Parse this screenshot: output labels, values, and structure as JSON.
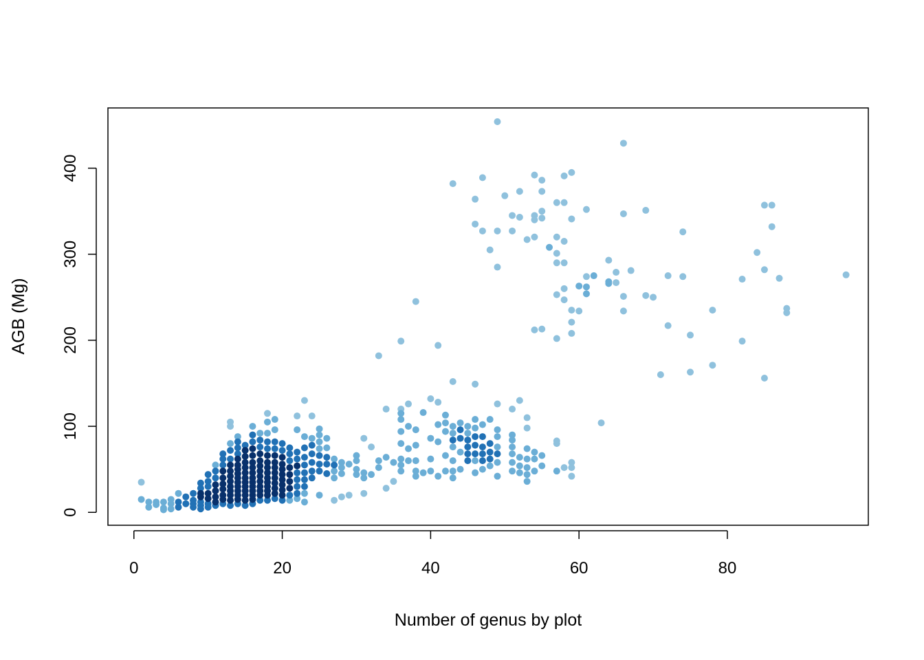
{
  "chart_data": {
    "type": "scatter",
    "xlabel": "Number of genus by plot",
    "ylabel": "AGB (Mg)",
    "xlim": [
      -3.5,
      99
    ],
    "ylim": [
      -15,
      470
    ],
    "x_ticks": [
      0,
      20,
      40,
      60,
      80
    ],
    "y_ticks": [
      0,
      100,
      200,
      300,
      400
    ],
    "grid": false,
    "legend": "none",
    "colors": {
      "dense": "#08306b",
      "mid": "#2171b5",
      "light": "#6baed6",
      "sparse": "#8fc1dd"
    },
    "points": [
      [
        1,
        35
      ],
      [
        1,
        15
      ],
      [
        2,
        6
      ],
      [
        2,
        12
      ],
      [
        3,
        12
      ],
      [
        3,
        9
      ],
      [
        4,
        5
      ],
      [
        4,
        12
      ],
      [
        4,
        3
      ],
      [
        5,
        15
      ],
      [
        5,
        10
      ],
      [
        5,
        4
      ],
      [
        6,
        22
      ],
      [
        6,
        12
      ],
      [
        6,
        6
      ],
      [
        7,
        10
      ],
      [
        7,
        18
      ],
      [
        8,
        14
      ],
      [
        8,
        22
      ],
      [
        8,
        10
      ],
      [
        8,
        6
      ],
      [
        9,
        34
      ],
      [
        9,
        28
      ],
      [
        9,
        22
      ],
      [
        9,
        18
      ],
      [
        9,
        12
      ],
      [
        9,
        8
      ],
      [
        9,
        4
      ],
      [
        10,
        44
      ],
      [
        10,
        36
      ],
      [
        10,
        30
      ],
      [
        10,
        22
      ],
      [
        10,
        16
      ],
      [
        10,
        10
      ],
      [
        10,
        6
      ],
      [
        11,
        55
      ],
      [
        11,
        48
      ],
      [
        11,
        40
      ],
      [
        11,
        32
      ],
      [
        11,
        25
      ],
      [
        11,
        18
      ],
      [
        11,
        12
      ],
      [
        11,
        8
      ],
      [
        12,
        68
      ],
      [
        12,
        62
      ],
      [
        12,
        55
      ],
      [
        12,
        48
      ],
      [
        12,
        40
      ],
      [
        12,
        33
      ],
      [
        12,
        27
      ],
      [
        12,
        20
      ],
      [
        12,
        15
      ],
      [
        12,
        10
      ],
      [
        13,
        105
      ],
      [
        13,
        100
      ],
      [
        13,
        80
      ],
      [
        13,
        72
      ],
      [
        13,
        62
      ],
      [
        13,
        55
      ],
      [
        13,
        48
      ],
      [
        13,
        42
      ],
      [
        13,
        36
      ],
      [
        13,
        30
      ],
      [
        13,
        25
      ],
      [
        13,
        20
      ],
      [
        13,
        14
      ],
      [
        13,
        8
      ],
      [
        14,
        88
      ],
      [
        14,
        82
      ],
      [
        14,
        75
      ],
      [
        14,
        68
      ],
      [
        14,
        62
      ],
      [
        14,
        55
      ],
      [
        14,
        50
      ],
      [
        14,
        45
      ],
      [
        14,
        40
      ],
      [
        14,
        35
      ],
      [
        14,
        30
      ],
      [
        14,
        25
      ],
      [
        14,
        20
      ],
      [
        14,
        15
      ],
      [
        14,
        10
      ],
      [
        15,
        78
      ],
      [
        15,
        72
      ],
      [
        15,
        65
      ],
      [
        15,
        58
      ],
      [
        15,
        52
      ],
      [
        15,
        46
      ],
      [
        15,
        40
      ],
      [
        15,
        35
      ],
      [
        15,
        30
      ],
      [
        15,
        25
      ],
      [
        15,
        20
      ],
      [
        15,
        14
      ],
      [
        15,
        8
      ],
      [
        16,
        100
      ],
      [
        16,
        90
      ],
      [
        16,
        82
      ],
      [
        16,
        74
      ],
      [
        16,
        66
      ],
      [
        16,
        58
      ],
      [
        16,
        52
      ],
      [
        16,
        46
      ],
      [
        16,
        40
      ],
      [
        16,
        35
      ],
      [
        16,
        30
      ],
      [
        16,
        25
      ],
      [
        16,
        20
      ],
      [
        16,
        15
      ],
      [
        16,
        10
      ],
      [
        17,
        92
      ],
      [
        17,
        84
      ],
      [
        17,
        76
      ],
      [
        17,
        68
      ],
      [
        17,
        60
      ],
      [
        17,
        54
      ],
      [
        17,
        48
      ],
      [
        17,
        42
      ],
      [
        17,
        36
      ],
      [
        17,
        30
      ],
      [
        17,
        25
      ],
      [
        17,
        20
      ],
      [
        17,
        14
      ],
      [
        18,
        115
      ],
      [
        18,
        105
      ],
      [
        18,
        92
      ],
      [
        18,
        82
      ],
      [
        18,
        74
      ],
      [
        18,
        66
      ],
      [
        18,
        58
      ],
      [
        18,
        52
      ],
      [
        18,
        46
      ],
      [
        18,
        40
      ],
      [
        18,
        35
      ],
      [
        18,
        30
      ],
      [
        18,
        25
      ],
      [
        18,
        20
      ],
      [
        18,
        14
      ],
      [
        19,
        108
      ],
      [
        19,
        96
      ],
      [
        19,
        82
      ],
      [
        19,
        74
      ],
      [
        19,
        66
      ],
      [
        19,
        58
      ],
      [
        19,
        52
      ],
      [
        19,
        46
      ],
      [
        19,
        40
      ],
      [
        19,
        34
      ],
      [
        19,
        28
      ],
      [
        19,
        22
      ],
      [
        19,
        16
      ],
      [
        20,
        80
      ],
      [
        20,
        72
      ],
      [
        20,
        64
      ],
      [
        20,
        56
      ],
      [
        20,
        50
      ],
      [
        20,
        44
      ],
      [
        20,
        38
      ],
      [
        20,
        32
      ],
      [
        20,
        26
      ],
      [
        20,
        20
      ],
      [
        20,
        14
      ],
      [
        21,
        75
      ],
      [
        21,
        68
      ],
      [
        21,
        60
      ],
      [
        21,
        52
      ],
      [
        21,
        44
      ],
      [
        21,
        36
      ],
      [
        21,
        28
      ],
      [
        21,
        20
      ],
      [
        21,
        14
      ],
      [
        22,
        112
      ],
      [
        22,
        96
      ],
      [
        22,
        70
      ],
      [
        22,
        62
      ],
      [
        22,
        54
      ],
      [
        22,
        46
      ],
      [
        22,
        38
      ],
      [
        22,
        30
      ],
      [
        22,
        22
      ],
      [
        22,
        16
      ],
      [
        23,
        130
      ],
      [
        23,
        88
      ],
      [
        23,
        75
      ],
      [
        23,
        64
      ],
      [
        23,
        55
      ],
      [
        23,
        46
      ],
      [
        23,
        38
      ],
      [
        23,
        30
      ],
      [
        23,
        22
      ],
      [
        23,
        12
      ],
      [
        24,
        112
      ],
      [
        24,
        86
      ],
      [
        24,
        78
      ],
      [
        24,
        68
      ],
      [
        24,
        58
      ],
      [
        24,
        48
      ],
      [
        24,
        40
      ],
      [
        25,
        97
      ],
      [
        25,
        90
      ],
      [
        25,
        82
      ],
      [
        25,
        74
      ],
      [
        25,
        66
      ],
      [
        25,
        56
      ],
      [
        25,
        48
      ],
      [
        25,
        20
      ],
      [
        26,
        86
      ],
      [
        26,
        75
      ],
      [
        26,
        64
      ],
      [
        26,
        56
      ],
      [
        26,
        45
      ],
      [
        27,
        62
      ],
      [
        27,
        55
      ],
      [
        27,
        48
      ],
      [
        27,
        40
      ],
      [
        27,
        14
      ],
      [
        28,
        58
      ],
      [
        28,
        52
      ],
      [
        28,
        45
      ],
      [
        28,
        18
      ],
      [
        29,
        56
      ],
      [
        29,
        20
      ],
      [
        30,
        66
      ],
      [
        30,
        60
      ],
      [
        30,
        50
      ],
      [
        30,
        44
      ],
      [
        31,
        86
      ],
      [
        31,
        46
      ],
      [
        31,
        40
      ],
      [
        31,
        22
      ],
      [
        32,
        76
      ],
      [
        32,
        44
      ],
      [
        33,
        182
      ],
      [
        33,
        60
      ],
      [
        33,
        52
      ],
      [
        34,
        120
      ],
      [
        34,
        64
      ],
      [
        34,
        28
      ],
      [
        35,
        58
      ],
      [
        35,
        36
      ],
      [
        36,
        199
      ],
      [
        36,
        120
      ],
      [
        36,
        115
      ],
      [
        36,
        108
      ],
      [
        36,
        94
      ],
      [
        36,
        80
      ],
      [
        36,
        62
      ],
      [
        36,
        55
      ],
      [
        36,
        48
      ],
      [
        37,
        126
      ],
      [
        37,
        100
      ],
      [
        37,
        74
      ],
      [
        37,
        60
      ],
      [
        38,
        245
      ],
      [
        38,
        96
      ],
      [
        38,
        78
      ],
      [
        38,
        60
      ],
      [
        38,
        48
      ],
      [
        38,
        42
      ],
      [
        39,
        116
      ],
      [
        39,
        46
      ],
      [
        40,
        132
      ],
      [
        40,
        86
      ],
      [
        40,
        62
      ],
      [
        40,
        48
      ],
      [
        41,
        194
      ],
      [
        41,
        128
      ],
      [
        41,
        102
      ],
      [
        41,
        82
      ],
      [
        41,
        42
      ],
      [
        42,
        113
      ],
      [
        42,
        104
      ],
      [
        42,
        94
      ],
      [
        42,
        66
      ],
      [
        42,
        48
      ],
      [
        43,
        382
      ],
      [
        43,
        152
      ],
      [
        43,
        100
      ],
      [
        43,
        92
      ],
      [
        43,
        84
      ],
      [
        43,
        76
      ],
      [
        43,
        60
      ],
      [
        43,
        48
      ],
      [
        43,
        40
      ],
      [
        44,
        104
      ],
      [
        44,
        96
      ],
      [
        44,
        86
      ],
      [
        44,
        70
      ],
      [
        44,
        50
      ],
      [
        45,
        100
      ],
      [
        45,
        92
      ],
      [
        45,
        84
      ],
      [
        45,
        76
      ],
      [
        45,
        68
      ],
      [
        45,
        60
      ],
      [
        46,
        364
      ],
      [
        46,
        335
      ],
      [
        46,
        149
      ],
      [
        46,
        108
      ],
      [
        46,
        98
      ],
      [
        46,
        88
      ],
      [
        46,
        78
      ],
      [
        46,
        68
      ],
      [
        46,
        60
      ],
      [
        46,
        46
      ],
      [
        47,
        389
      ],
      [
        47,
        327
      ],
      [
        47,
        102
      ],
      [
        47,
        88
      ],
      [
        47,
        76
      ],
      [
        47,
        68
      ],
      [
        47,
        60
      ],
      [
        47,
        50
      ],
      [
        48,
        305
      ],
      [
        48,
        108
      ],
      [
        48,
        80
      ],
      [
        48,
        70
      ],
      [
        48,
        62
      ],
      [
        48,
        54
      ],
      [
        49,
        454
      ],
      [
        49,
        327
      ],
      [
        49,
        285
      ],
      [
        49,
        126
      ],
      [
        49,
        96
      ],
      [
        49,
        88
      ],
      [
        49,
        76
      ],
      [
        49,
        68
      ],
      [
        49,
        58
      ],
      [
        49,
        42
      ],
      [
        50,
        368
      ],
      [
        51,
        345
      ],
      [
        51,
        327
      ],
      [
        51,
        120
      ],
      [
        51,
        90
      ],
      [
        51,
        84
      ],
      [
        51,
        76
      ],
      [
        51,
        68
      ],
      [
        51,
        58
      ],
      [
        51,
        48
      ],
      [
        52,
        373
      ],
      [
        52,
        343
      ],
      [
        52,
        130
      ],
      [
        52,
        64
      ],
      [
        52,
        54
      ],
      [
        52,
        46
      ],
      [
        53,
        317
      ],
      [
        53,
        110
      ],
      [
        53,
        98
      ],
      [
        53,
        74
      ],
      [
        53,
        62
      ],
      [
        53,
        52
      ],
      [
        53,
        44
      ],
      [
        53,
        36
      ],
      [
        54,
        392
      ],
      [
        54,
        345
      ],
      [
        54,
        340
      ],
      [
        54,
        320
      ],
      [
        54,
        212
      ],
      [
        54,
        70
      ],
      [
        54,
        62
      ],
      [
        54,
        48
      ],
      [
        55,
        386
      ],
      [
        55,
        373
      ],
      [
        55,
        350
      ],
      [
        55,
        342
      ],
      [
        55,
        213
      ],
      [
        55,
        66
      ],
      [
        55,
        54
      ],
      [
        56,
        308
      ],
      [
        57,
        360
      ],
      [
        57,
        320
      ],
      [
        57,
        301
      ],
      [
        57,
        290
      ],
      [
        57,
        253
      ],
      [
        57,
        202
      ],
      [
        57,
        83
      ],
      [
        57,
        80
      ],
      [
        57,
        48
      ],
      [
        58,
        391
      ],
      [
        58,
        360
      ],
      [
        58,
        315
      ],
      [
        58,
        290
      ],
      [
        58,
        260
      ],
      [
        58,
        247
      ],
      [
        58,
        52
      ],
      [
        59,
        395
      ],
      [
        59,
        341
      ],
      [
        59,
        235
      ],
      [
        59,
        221
      ],
      [
        59,
        208
      ],
      [
        59,
        58
      ],
      [
        59,
        52
      ],
      [
        59,
        42
      ],
      [
        60,
        263
      ],
      [
        60,
        234
      ],
      [
        61,
        352
      ],
      [
        61,
        274
      ],
      [
        61,
        262
      ],
      [
        61,
        254
      ],
      [
        62,
        275
      ],
      [
        63,
        104
      ],
      [
        64,
        293
      ],
      [
        64,
        268
      ],
      [
        64,
        266
      ],
      [
        65,
        279
      ],
      [
        65,
        267
      ],
      [
        66,
        429
      ],
      [
        66,
        347
      ],
      [
        66,
        251
      ],
      [
        66,
        234
      ],
      [
        67,
        281
      ],
      [
        69,
        351
      ],
      [
        69,
        252
      ],
      [
        70,
        250
      ],
      [
        71,
        160
      ],
      [
        72,
        275
      ],
      [
        72,
        217
      ],
      [
        74,
        326
      ],
      [
        74,
        274
      ],
      [
        75,
        206
      ],
      [
        75,
        163
      ],
      [
        78,
        235
      ],
      [
        78,
        171
      ],
      [
        82,
        271
      ],
      [
        82,
        199
      ],
      [
        84,
        302
      ],
      [
        85,
        357
      ],
      [
        85,
        282
      ],
      [
        85,
        156
      ],
      [
        86,
        357
      ],
      [
        86,
        332
      ],
      [
        87,
        272
      ],
      [
        88,
        237
      ],
      [
        88,
        232
      ],
      [
        96,
        276
      ]
    ]
  }
}
